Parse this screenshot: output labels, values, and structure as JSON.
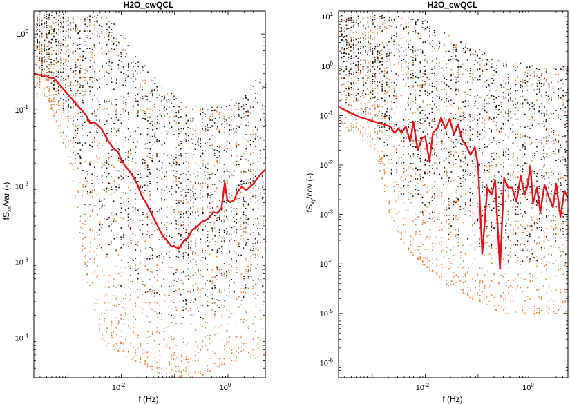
{
  "colors": {
    "background": "#ffffff",
    "median_line": "#e8131b",
    "dots_dark": "#1a0e08",
    "dots_orange": "#e77f3e"
  },
  "chart_data": [
    {
      "type": "scatter",
      "title": "H2O_cwQCL",
      "xlabel": "f (Hz)",
      "ylabel": "fS",
      "ylabel_sub": "xx",
      "ylabel_rest": "/var (-)",
      "xscale": "log",
      "yscale": "log",
      "xlim": [
        0.00023,
        5.0
      ],
      "ylim": [
        3e-05,
        2.0
      ],
      "x_ticks": [
        {
          "v": 0.01,
          "label": "10",
          "exp": "-2"
        },
        {
          "v": 1,
          "label": "10",
          "exp": "0"
        }
      ],
      "y_ticks": [
        {
          "v": 0.0001,
          "label": "10",
          "exp": "-4"
        },
        {
          "v": 0.001,
          "label": "10",
          "exp": "-3"
        },
        {
          "v": 0.01,
          "label": "10",
          "exp": "-2"
        },
        {
          "v": 0.1,
          "label": "10",
          "exp": "-1"
        },
        {
          "v": 1,
          "label": "10",
          "exp": "0"
        }
      ],
      "median_series": {
        "x": [
          0.00023,
          0.00055,
          0.0022,
          0.0026,
          0.0031,
          0.0036,
          0.0043,
          0.0052,
          0.006,
          0.0072,
          0.0087,
          0.01,
          0.012,
          0.014,
          0.017,
          0.02,
          0.024,
          0.029,
          0.035,
          0.042,
          0.05,
          0.06,
          0.072,
          0.087,
          0.1,
          0.12,
          0.15,
          0.18,
          0.21,
          0.26,
          0.31,
          0.37,
          0.44,
          0.53,
          0.64,
          0.76,
          0.87,
          0.97,
          1.1,
          1.3,
          1.5,
          1.8,
          2.2,
          2.6,
          3.0,
          3.6,
          4.3,
          5.0
        ],
        "y": [
          0.3,
          0.26,
          0.085,
          0.067,
          0.069,
          0.063,
          0.056,
          0.044,
          0.037,
          0.031,
          0.028,
          0.022,
          0.018,
          0.016,
          0.013,
          0.0105,
          0.0075,
          0.006,
          0.0046,
          0.0036,
          0.0028,
          0.0022,
          0.0019,
          0.0016,
          0.0016,
          0.0015,
          0.0019,
          0.0021,
          0.0026,
          0.0029,
          0.0033,
          0.0035,
          0.0038,
          0.0045,
          0.0044,
          0.0052,
          0.011,
          0.0065,
          0.0061,
          0.0065,
          0.0083,
          0.0098,
          0.0088,
          0.0098,
          0.0107,
          0.0128,
          0.0148,
          0.0165
        ]
      },
      "scatter_profile": {
        "freq": [
          0.0004,
          0.0011,
          0.0022,
          0.0043,
          0.0087,
          0.018,
          0.035,
          0.07,
          0.14,
          0.28,
          0.56,
          1.1,
          2.2,
          4.4
        ],
        "upper": [
          1.9,
          1.9,
          1.9,
          1.9,
          1.3,
          0.6,
          0.3,
          0.2,
          0.13,
          0.11,
          0.11,
          0.14,
          0.2,
          0.32
        ],
        "lower": [
          0.15,
          0.02,
          0.0006,
          9e-05,
          6e-05,
          5e-05,
          4e-05,
          3e-05,
          3e-05,
          3e-05,
          4e-05,
          5e-05,
          5e-05,
          6e-05
        ]
      },
      "dots_orange_approx": 1400,
      "dots_dark_approx": 1500
    },
    {
      "type": "scatter",
      "title": "H2O_cwQCL",
      "xlabel": "f (Hz)",
      "ylabel": "fS",
      "ylabel_sub": "xy",
      "ylabel_rest": "/cov (-)",
      "xscale": "log",
      "yscale": "log",
      "xlim": [
        0.00023,
        5.0
      ],
      "ylim": [
        5e-07,
        13.0
      ],
      "x_ticks": [
        {
          "v": 0.01,
          "label": "10",
          "exp": "-2"
        },
        {
          "v": 1,
          "label": "10",
          "exp": "0"
        }
      ],
      "y_ticks": [
        {
          "v": 1e-06,
          "label": "10",
          "exp": "-6"
        },
        {
          "v": 1e-05,
          "label": "10",
          "exp": "-5"
        },
        {
          "v": 0.0001,
          "label": "10",
          "exp": "-4"
        },
        {
          "v": 0.001,
          "label": "10",
          "exp": "-3"
        },
        {
          "v": 0.01,
          "label": "10",
          "exp": "-2"
        },
        {
          "v": 0.1,
          "label": "10",
          "exp": "-1"
        },
        {
          "v": 1,
          "label": "10",
          "exp": "0"
        },
        {
          "v": 10,
          "label": "10",
          "exp": "1"
        }
      ],
      "median_series": {
        "x": [
          0.00023,
          0.00055,
          0.0022,
          0.0026,
          0.0031,
          0.0036,
          0.0043,
          0.0052,
          0.006,
          0.0072,
          0.0087,
          0.01,
          0.012,
          0.014,
          0.017,
          0.02,
          0.024,
          0.029,
          0.035,
          0.042,
          0.05,
          0.06,
          0.072,
          0.087,
          0.1,
          0.12,
          0.15,
          0.18,
          0.21,
          0.26,
          0.31,
          0.37,
          0.44,
          0.53,
          0.64,
          0.76,
          0.87,
          0.97,
          1.1,
          1.3,
          1.5,
          1.8,
          2.2,
          2.6,
          3.0,
          3.6,
          4.3,
          5.0
        ],
        "y": [
          0.15,
          0.095,
          0.06,
          0.045,
          0.055,
          0.045,
          0.06,
          0.03,
          0.075,
          0.02,
          0.035,
          0.038,
          0.012,
          0.045,
          0.055,
          0.09,
          0.055,
          0.085,
          0.042,
          0.065,
          0.033,
          0.024,
          0.016,
          0.023,
          0.01,
          0.00016,
          0.0035,
          0.0025,
          0.005,
          8e-05,
          0.0055,
          0.0035,
          0.0035,
          0.0018,
          0.006,
          0.0025,
          0.004,
          0.0095,
          0.0017,
          0.0035,
          0.0011,
          0.004,
          0.0022,
          0.0014,
          0.0042,
          0.0009,
          0.003,
          0.0021
        ]
      },
      "scatter_profile": {
        "freq": [
          0.0004,
          0.0011,
          0.0022,
          0.0043,
          0.0087,
          0.018,
          0.035,
          0.07,
          0.14,
          0.28,
          0.56,
          1.1,
          2.2,
          4.4
        ],
        "upper": [
          11,
          11,
          11,
          11,
          9,
          6,
          4,
          3,
          2,
          1.5,
          1.2,
          1.1,
          1.0,
          1.0
        ],
        "lower": [
          0.05,
          0.02,
          0.0008,
          0.0002,
          0.0001,
          5e-05,
          3e-05,
          2e-05,
          1.5e-05,
          1e-05,
          1e-05,
          1e-05,
          1e-05,
          1e-05
        ]
      },
      "dots_orange_approx": 1200,
      "dots_dark_approx": 1300
    }
  ]
}
